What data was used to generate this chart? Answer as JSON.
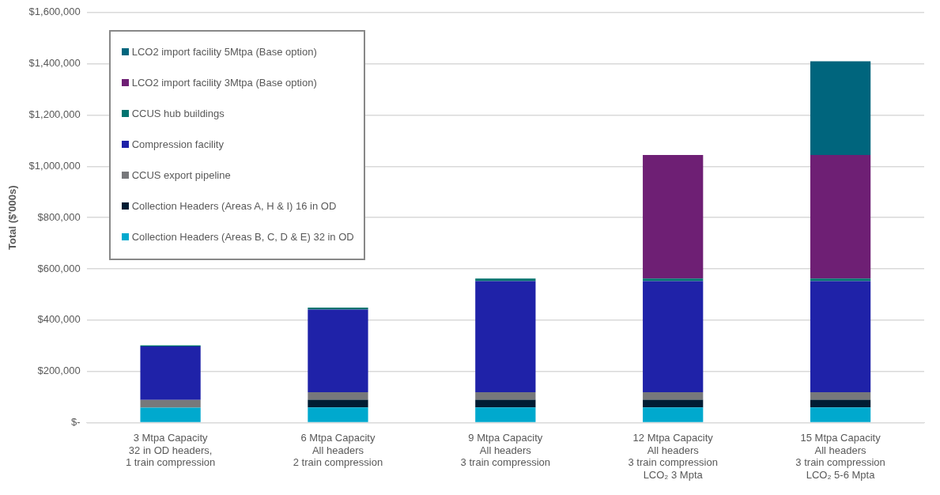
{
  "chart_data": {
    "type": "bar",
    "stacked": true,
    "ylabel": "Total ($'000s)",
    "categories": [
      "3 Mtpa Capacity\n32 in OD headers,\n1 train compression",
      "6 Mtpa Capacity\nAll headers\n2 train compression",
      "9 Mtpa Capacity\nAll headers\n3 train compression",
      "12 Mtpa Capacity\nAll headers\n3 train compression\nLCO₂ 3 Mpta",
      "15 Mtpa Capacity\nAll headers\n3 train compression\nLCO₂ 5-6 Mpta"
    ],
    "series": [
      {
        "name": "Collection Headers (Areas B, C, D & E) 32 in OD",
        "color": "#00a9ce",
        "values": [
          59000,
          60000,
          60000,
          60000,
          60000
        ]
      },
      {
        "name": "Collection Headers (Areas A, H & I) 16 in OD",
        "color": "#001c33",
        "values": [
          null,
          30000,
          30000,
          30000,
          30000
        ]
      },
      {
        "name": "CCUS export pipeline",
        "color": "#77787b",
        "values": [
          30000,
          29000,
          29000,
          29000,
          29000
        ]
      },
      {
        "name": "Compression facility",
        "color": "#1f22a8",
        "values": [
          209000,
          322000,
          433000,
          433000,
          433000
        ]
      },
      {
        "name": "CCUS hub buildings",
        "color": "#00736f",
        "values": [
          4000,
          8000,
          10000,
          10000,
          10000
        ]
      },
      {
        "name": "LCO2 import facility 3Mtpa (Base option)",
        "color": "#6e1f74",
        "values": [
          null,
          null,
          null,
          482000,
          482000
        ]
      },
      {
        "name": "LCO2 import facility 5Mtpa (Base option)",
        "color": "#00657d",
        "values": [
          null,
          null,
          null,
          null,
          366000
        ]
      }
    ],
    "ylim": [
      0,
      1600000
    ],
    "yticks": [
      {
        "value": 0,
        "label": "$-"
      },
      {
        "value": 200000,
        "label": "$200,000"
      },
      {
        "value": 400000,
        "label": "$400,000"
      },
      {
        "value": 600000,
        "label": "$600,000"
      },
      {
        "value": 800000,
        "label": "$800,000"
      },
      {
        "value": 1000000,
        "label": "$1,000,000"
      },
      {
        "value": 1200000,
        "label": "$1,200,000"
      },
      {
        "value": 1400000,
        "label": "$1,400,000"
      },
      {
        "value": 1600000,
        "label": "$1,600,000"
      }
    ],
    "grid": "y",
    "legend": "top left"
  }
}
